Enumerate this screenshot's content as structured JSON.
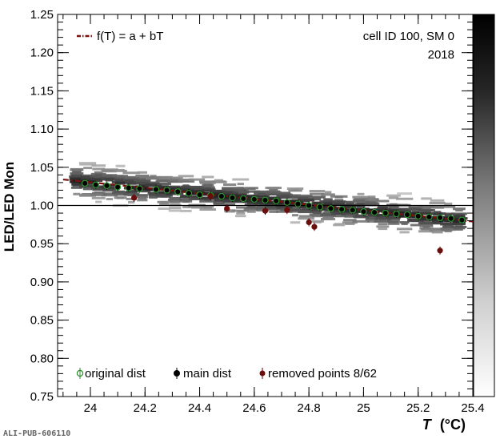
{
  "chart_data": {
    "type": "scatter",
    "ylabel": "LED/LED Mon",
    "xlabel": "T (°C)",
    "xlabel_main": "T",
    "xlabel_unit": "(°C)",
    "xlim": [
      23.88,
      25.4
    ],
    "ylim": [
      0.75,
      1.25
    ],
    "x_ticks": [
      "24",
      "24.2",
      "24.4",
      "24.6",
      "24.8",
      "25",
      "25.2",
      "25.4"
    ],
    "y_ticks": [
      "0.75",
      "0.80",
      "0.85",
      "0.90",
      "0.95",
      "1.00",
      "1.05",
      "1.10",
      "1.15",
      "1.20",
      "1.25"
    ],
    "reference_line_y": 1.0,
    "annotations": {
      "cell": "cell ID 100, SM 0",
      "year": "2018"
    },
    "legend_top": {
      "fit": "f(T) = a + bT"
    },
    "legend_bottom": {
      "original": "original dist",
      "main": "main dist",
      "removed": "removed points 8/62"
    },
    "fit": {
      "x": [
        23.9,
        25.4
      ],
      "y": [
        1.034,
        0.979
      ]
    },
    "main_points": {
      "x": [
        23.98,
        24.02,
        24.06,
        24.1,
        24.14,
        24.18,
        24.24,
        24.28,
        24.32,
        24.36,
        24.4,
        24.44,
        24.48,
        24.52,
        24.56,
        24.6,
        24.64,
        24.68,
        24.72,
        24.76,
        24.8,
        24.84,
        24.88,
        24.92,
        24.96,
        25.0,
        25.04,
        25.08,
        25.12,
        25.16,
        25.2,
        25.24,
        25.28,
        25.32,
        25.36
      ],
      "y": [
        1.029,
        1.027,
        1.026,
        1.024,
        1.023,
        1.022,
        1.021,
        1.02,
        1.018,
        1.016,
        1.014,
        1.013,
        1.012,
        1.01,
        1.009,
        1.008,
        1.007,
        1.006,
        1.004,
        1.002,
        1.0,
        0.998,
        0.996,
        0.995,
        0.994,
        0.992,
        0.991,
        0.99,
        0.989,
        0.988,
        0.986,
        0.985,
        0.984,
        0.983,
        0.981
      ]
    },
    "removed_points": {
      "x": [
        24.16,
        24.5,
        24.64,
        24.72,
        24.8,
        24.82,
        25.28,
        24.44
      ],
      "y": [
        1.01,
        0.996,
        0.993,
        0.994,
        0.978,
        0.972,
        0.941,
        1.012
      ]
    },
    "colorbar": {
      "gradient": "white-to-black",
      "labels": []
    }
  },
  "footer": "ALI-PUB-606110"
}
